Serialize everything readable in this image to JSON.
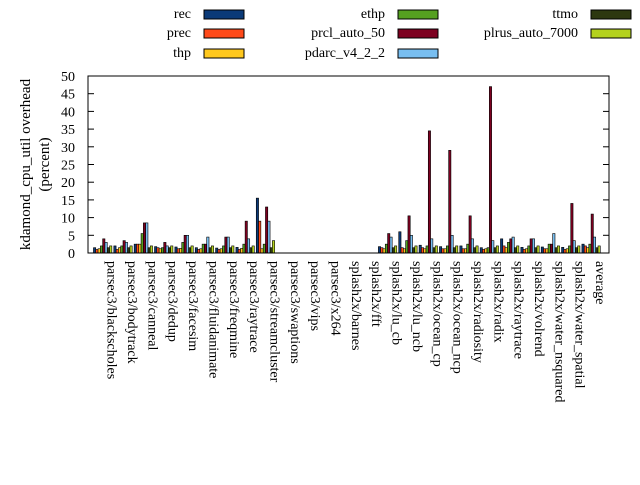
{
  "chart_data": {
    "type": "bar",
    "ylabel": "kdamond_cpu_util overhead (percent)",
    "ylabel_lines": [
      "kdamond_cpu_util overhead",
      "(percent)"
    ],
    "ylim": [
      0,
      50
    ],
    "yticks": [
      0,
      5,
      10,
      15,
      20,
      25,
      30,
      35,
      40,
      45,
      50
    ],
    "legend_position": "top",
    "categories": [
      "parsec3/blackscholes",
      "parsec3/bodytrack",
      "parsec3/canneal",
      "parsec3/dedup",
      "parsec3/facesim",
      "parsec3/fluidanimate",
      "parsec3/freqmine",
      "parsec3/raytrace",
      "parsec3/streamcluster",
      "parsec3/swaptions",
      "parsec3/vips",
      "parsec3/x264",
      "splash2x/barnes",
      "splash2x/fft",
      "splash2x/lu_cb",
      "splash2x/lu_ncb",
      "splash2x/ocean_cp",
      "splash2x/ocean_ncp",
      "splash2x/radiosity",
      "splash2x/radix",
      "splash2x/raytrace",
      "splash2x/volrend",
      "splash2x/water_nsquared",
      "splash2x/water_spatial",
      "average"
    ],
    "series": [
      {
        "name": "rec",
        "color": "#0b3a78",
        "values": [
          1.5,
          2.0,
          2.5,
          1.8,
          1.7,
          1.5,
          1.4,
          1.6,
          15.5,
          0,
          0,
          0,
          0,
          0,
          1.8,
          6.0,
          2.2,
          1.8,
          2.0,
          1.5,
          4.0,
          1.6,
          1.7,
          1.6,
          2.5
        ]
      },
      {
        "name": "prec",
        "color": "#ff4a1a",
        "values": [
          1.0,
          1.0,
          2.5,
          1.5,
          1.2,
          1.0,
          1.0,
          1.0,
          9.0,
          0,
          0,
          0,
          0,
          0,
          1.5,
          1.5,
          1.5,
          1.2,
          1.2,
          1.0,
          2.0,
          1.0,
          1.2,
          1.0,
          2.0
        ]
      },
      {
        "name": "thp",
        "color": "#ffc81e",
        "values": [
          1.2,
          1.5,
          2.5,
          1.2,
          1.3,
          1.2,
          1.2,
          1.3,
          1.2,
          0,
          0,
          0,
          0,
          0,
          1.2,
          1.2,
          1.2,
          1.2,
          1.2,
          1.2,
          1.5,
          1.2,
          1.2,
          1.2,
          1.5
        ]
      },
      {
        "name": "ethp",
        "color": "#55a020",
        "values": [
          2.0,
          2.0,
          5.5,
          1.5,
          3.0,
          2.5,
          2.0,
          2.5,
          2.5,
          0,
          0,
          0,
          0,
          0,
          2.5,
          3.5,
          2.0,
          2.0,
          2.5,
          1.5,
          3.0,
          2.0,
          2.5,
          2.0,
          2.5
        ]
      },
      {
        "name": "prcl_auto_50",
        "color": "#7d0020",
        "values": [
          4.0,
          3.5,
          8.5,
          3.0,
          5.0,
          2.5,
          4.5,
          9.0,
          13.0,
          0,
          0,
          0,
          0,
          0,
          5.5,
          10.5,
          34.5,
          29.0,
          10.5,
          47.0,
          4.0,
          4.0,
          2.5,
          14.0,
          11.0
        ]
      },
      {
        "name": "pdarc_v4_2_2",
        "color": "#78bef0",
        "values": [
          3.0,
          3.0,
          8.5,
          2.0,
          5.0,
          4.5,
          4.5,
          4.0,
          9.0,
          0,
          0,
          0,
          0,
          0,
          4.5,
          5.0,
          4.0,
          5.0,
          4.0,
          3.5,
          4.5,
          4.0,
          5.5,
          3.5,
          4.5
        ]
      },
      {
        "name": "ttmo",
        "color": "#2d3810",
        "values": [
          1.5,
          1.5,
          1.5,
          1.5,
          1.5,
          1.5,
          1.5,
          1.5,
          1.5,
          0,
          0,
          0,
          0,
          0,
          1.5,
          1.5,
          1.5,
          1.5,
          1.5,
          1.5,
          1.5,
          1.5,
          1.5,
          1.5,
          1.5
        ]
      },
      {
        "name": "plrus_auto_7000",
        "color": "#b4d21e",
        "values": [
          2.0,
          2.0,
          2.0,
          2.0,
          2.0,
          2.0,
          2.0,
          2.0,
          3.5,
          0,
          0,
          0,
          0,
          0,
          2.0,
          2.0,
          2.0,
          2.0,
          2.0,
          2.0,
          2.0,
          2.0,
          2.0,
          2.0,
          2.0
        ]
      }
    ]
  }
}
